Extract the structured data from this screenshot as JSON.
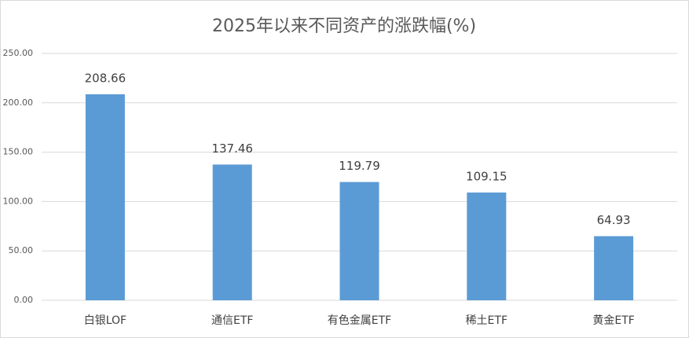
{
  "chart_data": {
    "type": "bar",
    "title": "2025年以来不同资产的涨跌幅(%)",
    "categories": [
      "白银LOF",
      "通信ETF",
      "有色金属ETF",
      "稀土ETF",
      "黄金ETF"
    ],
    "values": [
      208.66,
      137.46,
      119.79,
      109.15,
      64.93
    ],
    "color": "#5b9bd5",
    "ylim": [
      0,
      250
    ],
    "yticks": [
      {
        "value": 0,
        "label": "0.00"
      },
      {
        "value": 50,
        "label": "50.00"
      },
      {
        "value": 100,
        "label": "100.00"
      },
      {
        "value": 150,
        "label": "150.00"
      },
      {
        "value": 200,
        "label": "200.00"
      },
      {
        "value": 250,
        "label": "250.00"
      }
    ],
    "grid": true
  }
}
